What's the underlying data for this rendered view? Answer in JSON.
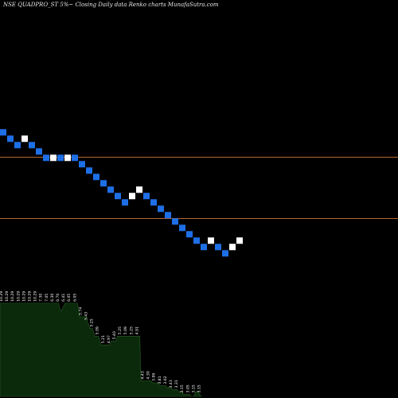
{
  "chart_data": {
    "type": "renko",
    "title": "NSE QUADPRO_ST 5%~ Closing Daily data Renko charts MunafaSutra.com",
    "y_axis": {
      "min": 3.0,
      "max": 10.0
    },
    "reference_lines": [
      8.1,
      6.75
    ],
    "colors": {
      "up_brick": "#ffffff",
      "down_brick": "#1e6fe6",
      "reference_line": "#b5672e",
      "volume_fill": "#0b2a0b",
      "volume_line": "#2a5a2a"
    },
    "bricks": [
      {
        "dir": "down",
        "close": 8.57
      },
      {
        "dir": "down",
        "close": 8.43
      },
      {
        "dir": "down",
        "close": 8.29
      },
      {
        "dir": "up",
        "close": 8.57
      },
      {
        "dir": "down",
        "close": 8.29
      },
      {
        "dir": "down",
        "close": 8.15
      },
      {
        "dir": "down",
        "close": 8.01
      },
      {
        "dir": "up",
        "close": 8.15
      },
      {
        "dir": "down",
        "close": 8.01
      },
      {
        "dir": "up",
        "close": 8.15
      },
      {
        "dir": "down",
        "close": 8.01
      },
      {
        "dir": "down",
        "close": 7.87
      },
      {
        "dir": "down",
        "close": 7.73
      },
      {
        "dir": "down",
        "close": 7.59
      },
      {
        "dir": "down",
        "close": 7.45
      },
      {
        "dir": "down",
        "close": 7.31
      },
      {
        "dir": "down",
        "close": 7.17
      },
      {
        "dir": "down",
        "close": 7.03
      },
      {
        "dir": "up",
        "close": 7.31
      },
      {
        "dir": "up",
        "close": 7.45
      },
      {
        "dir": "down",
        "close": 7.17
      },
      {
        "dir": "down",
        "close": 7.03
      },
      {
        "dir": "down",
        "close": 6.89
      },
      {
        "dir": "down",
        "close": 6.75
      },
      {
        "dir": "down",
        "close": 6.61
      },
      {
        "dir": "down",
        "close": 6.47
      },
      {
        "dir": "down",
        "close": 6.33
      },
      {
        "dir": "down",
        "close": 6.19
      },
      {
        "dir": "down",
        "close": 6.05
      },
      {
        "dir": "up",
        "close": 6.33
      },
      {
        "dir": "down",
        "close": 6.05
      },
      {
        "dir": "down",
        "close": 5.91
      },
      {
        "dir": "up",
        "close": 6.19
      },
      {
        "dir": "up",
        "close": 6.33
      }
    ],
    "volume": {
      "values": [
        0.96,
        0.96,
        0.96,
        0.96,
        0.96,
        0.96,
        0.96,
        0.96,
        0.96,
        0.96,
        0.96,
        0.96,
        0.96,
        0.96,
        0.96,
        0.96,
        0.96,
        0.96,
        0.96,
        0.96,
        0.96,
        0.96,
        0.96,
        0.96,
        0.96,
        0.96,
        0.96,
        0.96,
        0.96,
        0.96,
        0.96,
        0.96,
        0.96,
        0.96,
        0.96,
        0.96,
        0.96,
        0.96,
        0.96,
        0.96,
        0.96,
        0.96,
        0.96,
        0.96,
        0.96,
        0.96,
        0.96,
        0.96,
        0.9,
        0.88,
        0.9,
        0.93,
        0.96,
        0.96,
        0.96,
        0.96,
        0.96,
        0.96,
        0.96,
        0.96,
        0.96,
        0.96,
        0.96,
        0.9,
        0.82,
        0.82,
        0.82,
        0.82,
        0.82,
        0.82,
        0.77,
        0.74,
        0.7,
        0.7,
        0.7,
        0.66,
        0.62,
        0.62,
        0.62,
        0.62,
        0.57,
        0.53,
        0.53,
        0.53,
        0.53,
        0.53,
        0.53,
        0.53,
        0.53,
        0.57,
        0.57,
        0.57,
        0.57,
        0.57,
        0.62,
        0.62,
        0.62,
        0.62,
        0.62,
        0.62,
        0.62,
        0.62,
        0.62,
        0.62,
        0.62,
        0.62,
        0.62,
        0.62,
        0.62,
        0.62,
        0.62,
        0.62,
        0.62,
        0.16,
        0.16,
        0.16,
        0.16,
        0.16,
        0.16,
        0.16,
        0.16,
        0.16,
        0.14,
        0.14,
        0.14,
        0.14,
        0.14,
        0.14,
        0.11,
        0.11,
        0.11,
        0.11,
        0.11,
        0.11,
        0.09,
        0.09,
        0.09,
        0.09,
        0.07,
        0.07,
        0.07,
        0.07,
        0.07,
        0.05,
        0.05,
        0.05,
        0.05,
        0.02,
        0.02,
        0.02,
        0.02,
        0.02,
        0.02,
        0.0,
        0.0,
        0.0,
        0.02,
        0.05,
        0.05,
        0.05,
        0.02,
        0.0,
        0.0
      ],
      "labels": [
        {
          "i": 0,
          "text": "10.29"
        },
        {
          "i": 1,
          "text": "10.29"
        },
        {
          "i": 2,
          "text": "10.29"
        },
        {
          "i": 3,
          "text": "10.29"
        },
        {
          "i": 4,
          "text": "10.29"
        },
        {
          "i": 5,
          "text": "10.29"
        },
        {
          "i": 6,
          "text": "10.29"
        },
        {
          "i": 7,
          "text": "7.30"
        },
        {
          "i": 8,
          "text": "7.05"
        },
        {
          "i": 9,
          "text": "6.30"
        },
        {
          "i": 10,
          "text": "6.70"
        },
        {
          "i": 11,
          "text": "6.41"
        },
        {
          "i": 12,
          "text": "6.05"
        },
        {
          "i": 13,
          "text": "6.05"
        },
        {
          "i": 14,
          "text": "5.74"
        },
        {
          "i": 15,
          "text": "5.43"
        },
        {
          "i": 16,
          "text": "5.25"
        },
        {
          "i": 17,
          "text": "5.09"
        },
        {
          "i": 18,
          "text": "5.21"
        },
        {
          "i": 19,
          "text": "4.97"
        },
        {
          "i": 20,
          "text": "5.40"
        },
        {
          "i": 21,
          "text": "5.25"
        },
        {
          "i": 22,
          "text": "5.09"
        },
        {
          "i": 23,
          "text": "5.25"
        },
        {
          "i": 24,
          "text": "4.91"
        },
        {
          "i": 25,
          "text": "4.43"
        },
        {
          "i": 26,
          "text": "4.30"
        },
        {
          "i": 27,
          "text": "3.99"
        },
        {
          "i": 28,
          "text": "3.81"
        },
        {
          "i": 29,
          "text": "3.62"
        },
        {
          "i": 30,
          "text": "3.43"
        },
        {
          "i": 31,
          "text": "3.31"
        },
        {
          "i": 32,
          "text": "3.15"
        },
        {
          "i": 33,
          "text": "3.05"
        },
        {
          "i": 34,
          "text": "3.15"
        },
        {
          "i": 35,
          "text": "3.15"
        }
      ]
    }
  }
}
